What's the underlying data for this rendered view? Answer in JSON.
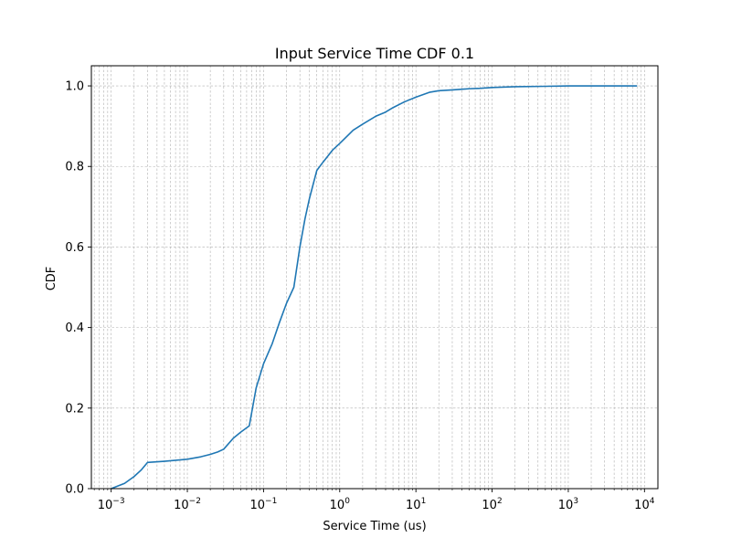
{
  "chart_data": {
    "type": "line",
    "title": "Input Service Time CDF 0.1",
    "xlabel": "Service Time (us)",
    "ylabel": "CDF",
    "xscale": "log",
    "xlim": [
      0.00055,
      15000
    ],
    "ylim": [
      0,
      1.05
    ],
    "grid": true,
    "grid_style": "dashed, major and minor",
    "x_ticks": [
      {
        "value": 0.001,
        "base": "10",
        "exp": "−3"
      },
      {
        "value": 0.01,
        "base": "10",
        "exp": "−2"
      },
      {
        "value": 0.1,
        "base": "10",
        "exp": "−1"
      },
      {
        "value": 1,
        "base": "10",
        "exp": "0"
      },
      {
        "value": 10,
        "base": "10",
        "exp": "1"
      },
      {
        "value": 100,
        "base": "10",
        "exp": "2"
      },
      {
        "value": 1000,
        "base": "10",
        "exp": "3"
      },
      {
        "value": 10000,
        "base": "10",
        "exp": "4"
      }
    ],
    "y_ticks": [
      {
        "value": 0.0,
        "label": "0.0"
      },
      {
        "value": 0.2,
        "label": "0.2"
      },
      {
        "value": 0.4,
        "label": "0.4"
      },
      {
        "value": 0.6,
        "label": "0.6"
      },
      {
        "value": 0.8,
        "label": "0.8"
      },
      {
        "value": 1.0,
        "label": "1.0"
      }
    ],
    "series": [
      {
        "color": "#1f77b4",
        "x": [
          0.001,
          0.0015,
          0.002,
          0.0025,
          0.003,
          0.005,
          0.01,
          0.015,
          0.02,
          0.025,
          0.03,
          0.04,
          0.05,
          0.065,
          0.08,
          0.1,
          0.13,
          0.16,
          0.2,
          0.25,
          0.3,
          0.35,
          0.4,
          0.5,
          0.6,
          0.8,
          1.0,
          1.5,
          2,
          3,
          4,
          5,
          7,
          10,
          15,
          20,
          30,
          50,
          70,
          100,
          200,
          500,
          1000,
          3000,
          8000
        ],
        "y": [
          0.0,
          0.013,
          0.03,
          0.047,
          0.065,
          0.068,
          0.073,
          0.079,
          0.085,
          0.091,
          0.098,
          0.125,
          0.14,
          0.156,
          0.25,
          0.31,
          0.36,
          0.41,
          0.46,
          0.5,
          0.6,
          0.67,
          0.72,
          0.79,
          0.81,
          0.84,
          0.857,
          0.89,
          0.905,
          0.925,
          0.935,
          0.946,
          0.96,
          0.972,
          0.984,
          0.988,
          0.99,
          0.993,
          0.994,
          0.996,
          0.998,
          0.999,
          1.0,
          1.0,
          1.0
        ]
      }
    ]
  }
}
